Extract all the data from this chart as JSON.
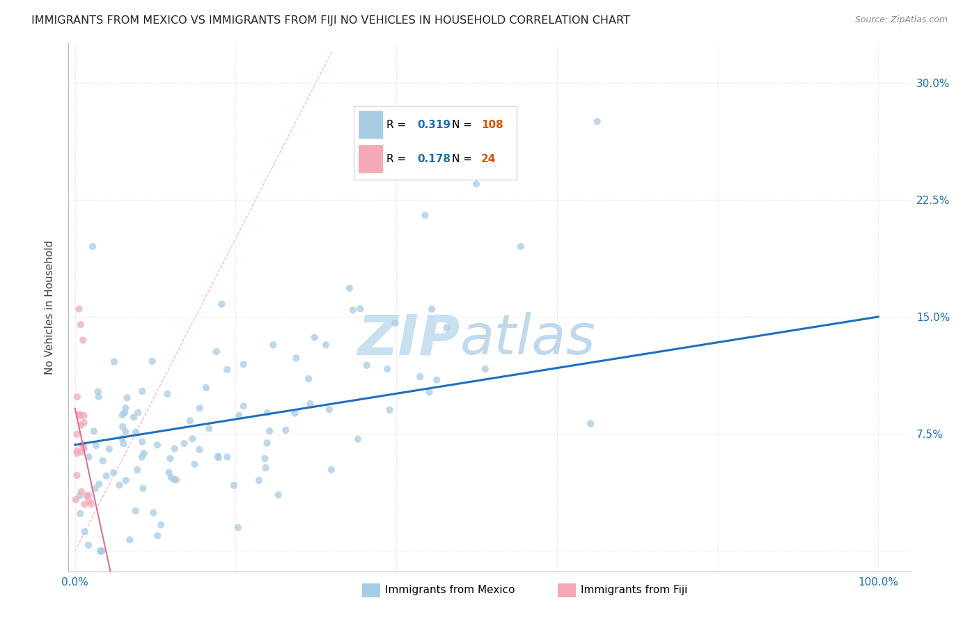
{
  "title": "IMMIGRANTS FROM MEXICO VS IMMIGRANTS FROM FIJI NO VEHICLES IN HOUSEHOLD CORRELATION CHART",
  "source": "Source: ZipAtlas.com",
  "ylabel": "No Vehicles in Household",
  "mexico_R": 0.319,
  "mexico_N": 108,
  "fiji_R": 0.178,
  "fiji_N": 24,
  "mexico_color": "#a8cce4",
  "fiji_color": "#f4a8b8",
  "mexico_line_color": "#1f6fbf",
  "ref_line_color": "#f4a8b8",
  "R_color": "#1a6faf",
  "N_color": "#e05000",
  "watermark_zip_color": "#c8e0f0",
  "watermark_atlas_color": "#c0d8ec",
  "grid_color": "#e8e8e8",
  "title_color": "#222222",
  "source_color": "#888888",
  "ylabel_color": "#444444",
  "tick_color": "#1a6faf",
  "legend_border_color": "#cccccc"
}
